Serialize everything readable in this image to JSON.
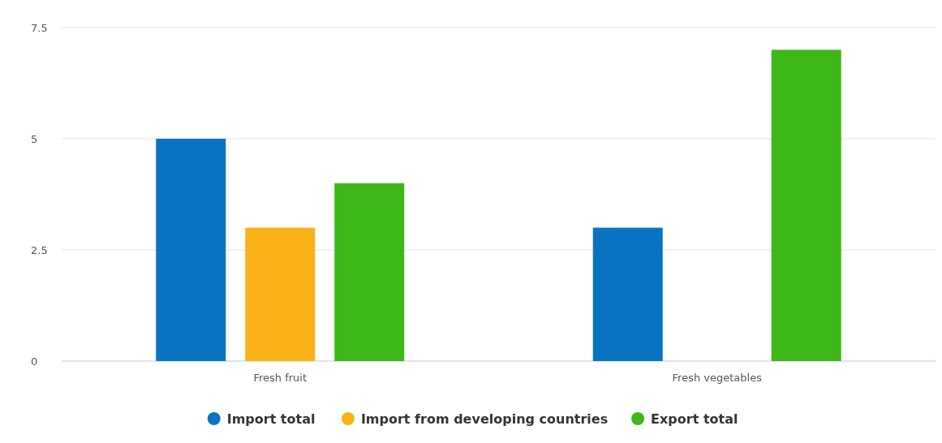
{
  "chart_data": {
    "type": "bar",
    "categories": [
      "Fresh fruit",
      "Fresh vegetables"
    ],
    "series": [
      {
        "name": "Import total",
        "color": "#0a74c4",
        "values": [
          5,
          3
        ]
      },
      {
        "name": "Import from developing countries",
        "color": "#fbb217",
        "values": [
          3,
          null
        ]
      },
      {
        "name": "Export total",
        "color": "#3db817",
        "values": [
          4,
          7
        ]
      }
    ],
    "ylim": [
      0,
      7.5
    ],
    "yticks": [
      0,
      2.5,
      5,
      7.5
    ],
    "grid": "y",
    "legend": "bottom"
  }
}
